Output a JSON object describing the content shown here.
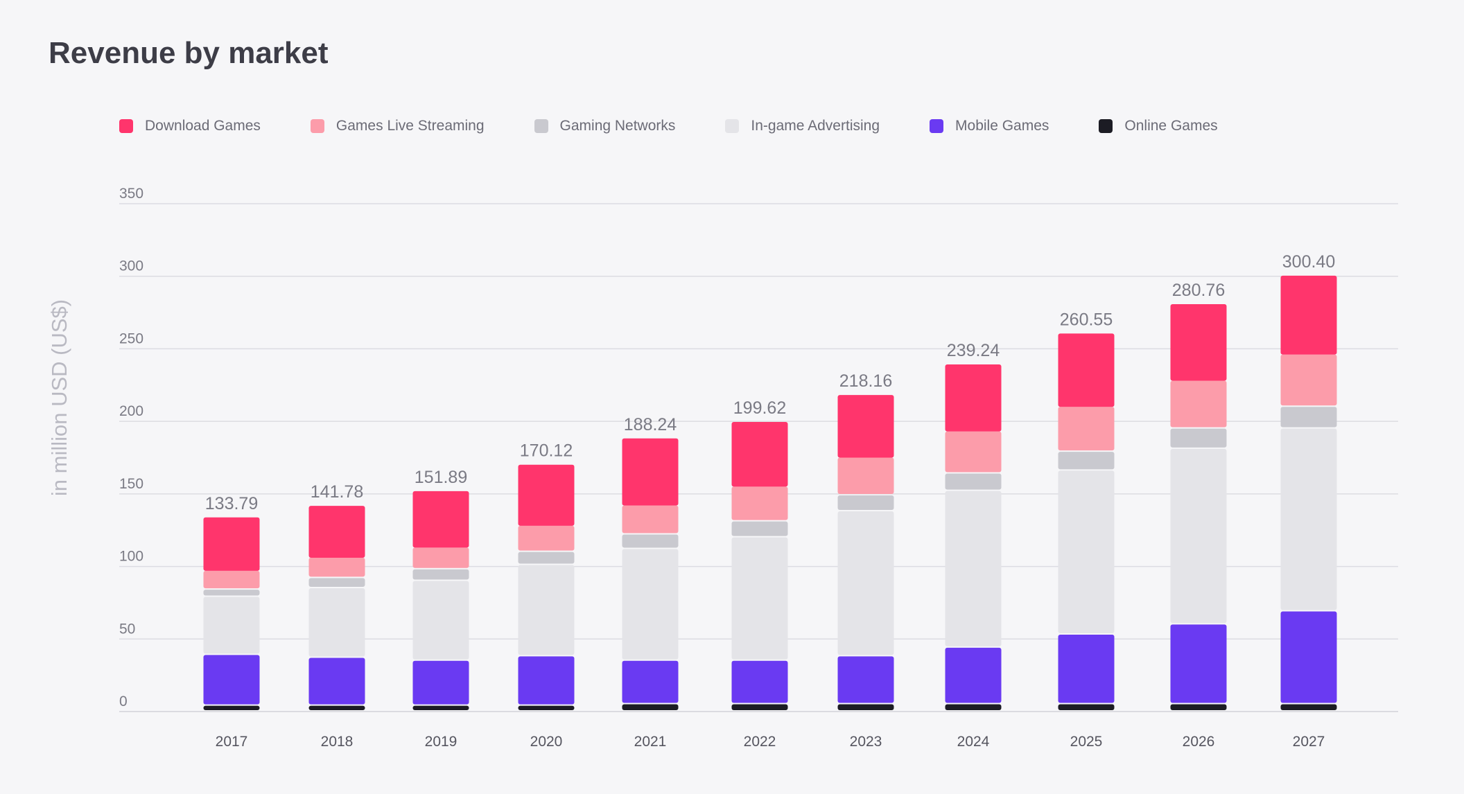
{
  "title": "Revenue by market",
  "chart_data": {
    "type": "bar",
    "stacked": true,
    "title": "Revenue by market",
    "xlabel": "",
    "ylabel": "in million USD (US$)",
    "ylim": [
      0,
      350
    ],
    "yticks": [
      0,
      50,
      100,
      150,
      200,
      250,
      300,
      350
    ],
    "grid": true,
    "legend_position": "top",
    "categories": [
      "2017",
      "2018",
      "2019",
      "2020",
      "2021",
      "2022",
      "2023",
      "2024",
      "2025",
      "2026",
      "2027"
    ],
    "series": [
      {
        "name": "Online Games",
        "color": "#1c1c24",
        "values": [
          4,
          4,
          4,
          4,
          5,
          5,
          5,
          5,
          5,
          5,
          5
        ]
      },
      {
        "name": "Mobile Games",
        "color": "#6a3af2",
        "values": [
          35,
          33,
          31,
          34,
          30,
          30,
          33,
          39,
          48,
          55,
          64
        ]
      },
      {
        "name": "In-game Advertising",
        "color": "#e4e4e8",
        "values": [
          40,
          48,
          55,
          63,
          77,
          85,
          100,
          108,
          113,
          121,
          126
        ]
      },
      {
        "name": "Gaming Networks",
        "color": "#c9c9cf",
        "values": [
          5,
          7,
          8,
          9,
          10,
          11,
          11,
          12,
          13,
          14,
          15
        ]
      },
      {
        "name": "Games Live Streaming",
        "color": "#fc9caa",
        "values": [
          13,
          14,
          15,
          18,
          20,
          24,
          26,
          29,
          31,
          33,
          36
        ]
      },
      {
        "name": "Download Games",
        "color": "#ff356c",
        "values": [
          36.79,
          35.78,
          38.89,
          42.12,
          46.24,
          44.62,
          43.16,
          46.24,
          50.55,
          52.76,
          54.4
        ]
      }
    ],
    "totals": [
      "133.79",
      "141.78",
      "151.89",
      "170.12",
      "188.24",
      "199.62",
      "218.16",
      "239.24",
      "260.55",
      "280.76",
      "300.40"
    ]
  },
  "legend": [
    {
      "label": "Download Games",
      "color": "#ff356c"
    },
    {
      "label": "Games Live Streaming",
      "color": "#fc9caa"
    },
    {
      "label": "Gaming Networks",
      "color": "#c9c9cf"
    },
    {
      "label": "In-game Advertising",
      "color": "#e4e4e8"
    },
    {
      "label": "Mobile Games",
      "color": "#6a3af2"
    },
    {
      "label": "Online Games",
      "color": "#1c1c24"
    }
  ]
}
